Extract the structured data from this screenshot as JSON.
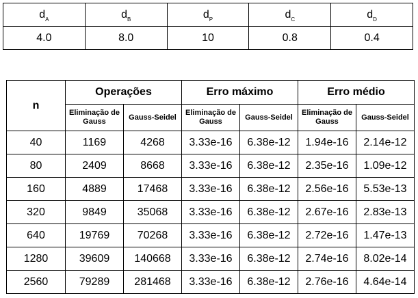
{
  "params": {
    "headers": [
      {
        "base": "d",
        "sub": "A"
      },
      {
        "base": "d",
        "sub": "B"
      },
      {
        "base": "d",
        "sub": "P"
      },
      {
        "base": "d",
        "sub": "C"
      },
      {
        "base": "d",
        "sub": "D"
      }
    ],
    "values": [
      "4.0",
      "8.0",
      "10",
      "0.8",
      "0.4"
    ]
  },
  "results": {
    "n_header": "n",
    "groups": [
      "Operações",
      "Erro máximo",
      "Erro médio"
    ],
    "methods": [
      "Eliminação de Gauss",
      "Gauss-Seidel"
    ],
    "rows": [
      [
        "40",
        "1169",
        "4268",
        "3.33e-16",
        "6.38e-12",
        "1.94e-16",
        "2.14e-12"
      ],
      [
        "80",
        "2409",
        "8668",
        "3.33e-16",
        "6.38e-12",
        "2.35e-16",
        "1.09e-12"
      ],
      [
        "160",
        "4889",
        "17468",
        "3.33e-16",
        "6.38e-12",
        "2.56e-16",
        "5.53e-13"
      ],
      [
        "320",
        "9849",
        "35068",
        "3.33e-16",
        "6.38e-12",
        "2.67e-16",
        "2.83e-13"
      ],
      [
        "640",
        "19769",
        "70268",
        "3.33e-16",
        "6.38e-12",
        "2.72e-16",
        "1.47e-13"
      ],
      [
        "1280",
        "39609",
        "140668",
        "3.33e-16",
        "6.38e-12",
        "2.74e-16",
        "8.02e-14"
      ],
      [
        "2560",
        "79289",
        "281468",
        "3.33e-16",
        "6.38e-12",
        "2.76e-16",
        "4.64e-14"
      ]
    ]
  }
}
